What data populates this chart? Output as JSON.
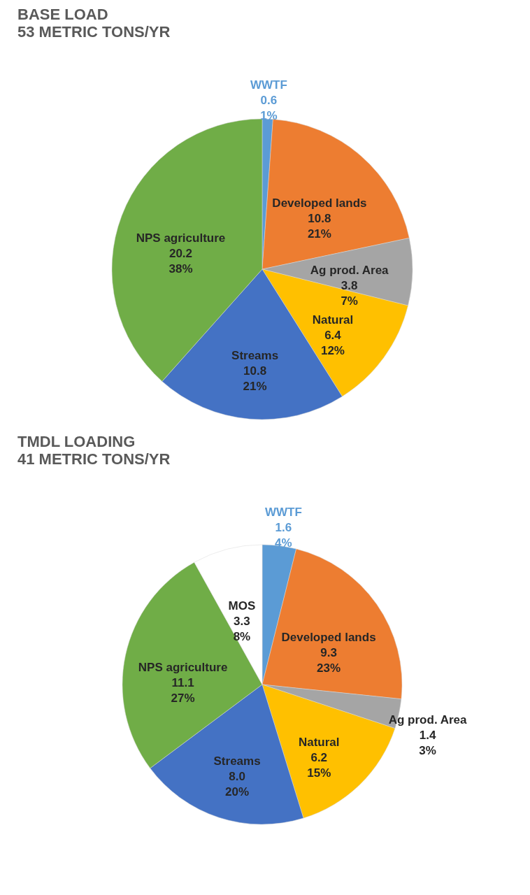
{
  "chart_data": [
    {
      "type": "pie",
      "title": "BASE LOAD",
      "subtitle": "53 METRIC TONS/YR",
      "legend": false,
      "categories": [
        "WWTF",
        "Developed lands",
        "Ag prod. Area",
        "Natural",
        "Streams",
        "NPS agriculture"
      ],
      "values": [
        0.6,
        10.8,
        3.8,
        6.4,
        10.8,
        20.2
      ],
      "colors": [
        "#5b9bd5",
        "#ed7d31",
        "#a5a5a5",
        "#ffc000",
        "#4472c4",
        "#70ad47"
      ],
      "value_labels": [
        "0.6\n1%",
        "10.8\n21%",
        "3.8\n7%",
        "6.4\n12%",
        "10.8\n21%",
        "20.2\n38%"
      ]
    },
    {
      "type": "pie",
      "title": "TMDL LOADING",
      "subtitle": "41 METRIC TONS/YR",
      "legend": false,
      "categories": [
        "WWTF",
        "Developed lands",
        "Ag prod. Area",
        "Natural",
        "Streams",
        "NPS agriculture",
        "MOS"
      ],
      "values": [
        1.6,
        9.3,
        1.4,
        6.2,
        8.0,
        11.1,
        3.3
      ],
      "colors": [
        "#5b9bd5",
        "#ed7d31",
        "#a5a5a5",
        "#ffc000",
        "#4472c4",
        "#70ad47",
        "#ffffff"
      ],
      "value_labels": [
        "1.6\n4%",
        "9.3\n23%",
        "1.4\n3%",
        "6.2\n15%",
        "8.0\n20%",
        "11.1\n27%",
        "3.3\n8%"
      ]
    }
  ]
}
